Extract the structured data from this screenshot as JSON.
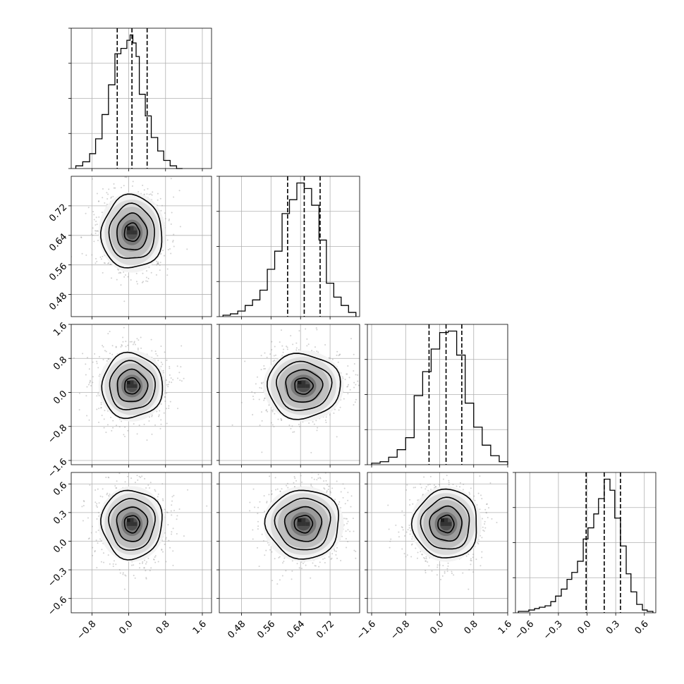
{
  "chart_data": {
    "type": "corner",
    "grid": true,
    "parameters": [
      {
        "range": [
          -1.25,
          1.8
        ],
        "ticks": [
          -0.8,
          0.0,
          0.8,
          1.6
        ],
        "tick_labels": [
          "−0.8",
          "0.0",
          "0.8",
          "1.6"
        ],
        "quantiles": [
          -0.25,
          0.07,
          0.4
        ]
      },
      {
        "range": [
          0.42,
          0.8
        ],
        "ticks": [
          0.48,
          0.56,
          0.64,
          0.72
        ],
        "tick_labels": [
          "0.48",
          "0.56",
          "0.64",
          "0.72"
        ],
        "quantiles": [
          0.605,
          0.65,
          0.693
        ]
      },
      {
        "range": [
          -1.7,
          1.6
        ],
        "ticks": [
          -1.6,
          -0.8,
          0.0,
          0.8,
          1.6
        ],
        "tick_labels": [
          "−1.6",
          "−0.8",
          "0.0",
          "0.8",
          "1.6"
        ],
        "quantiles": [
          -0.25,
          0.15,
          0.52
        ]
      },
      {
        "range": [
          -0.75,
          0.72
        ],
        "ticks": [
          -0.6,
          -0.3,
          0.0,
          0.3,
          0.6
        ],
        "tick_labels": [
          "−0.6",
          "−0.3",
          "0.0",
          "0.3",
          "0.6"
        ],
        "quantiles": [
          -0.01,
          0.18,
          0.35
        ]
      }
    ],
    "histograms": [
      {
        "edges": [
          -1.15,
          -1.0,
          -0.85,
          -0.72,
          -0.58,
          -0.44,
          -0.3,
          -0.17,
          -0.04,
          0.03,
          0.09,
          0.16,
          0.23,
          0.36,
          0.49,
          0.63,
          0.76,
          0.9,
          1.04,
          1.17
        ],
        "counts": [
          2,
          5,
          11,
          22,
          40,
          62,
          85,
          89,
          95,
          99,
          93,
          83,
          55,
          39,
          23,
          13,
          6,
          2,
          0
        ]
      },
      {
        "edges": [
          0.43,
          0.45,
          0.47,
          0.49,
          0.51,
          0.53,
          0.55,
          0.57,
          0.59,
          0.61,
          0.63,
          0.65,
          0.67,
          0.69,
          0.71,
          0.73,
          0.75,
          0.77,
          0.79
        ],
        "counts": [
          1,
          2,
          4,
          8,
          12,
          19,
          34,
          47,
          74,
          84,
          96,
          92,
          80,
          55,
          24,
          14,
          8,
          3
        ]
      },
      {
        "edges": [
          -1.6,
          -1.4,
          -1.2,
          -1.0,
          -0.8,
          -0.6,
          -0.4,
          -0.2,
          0.0,
          0.2,
          0.4,
          0.6,
          0.8,
          1.0,
          1.2,
          1.4,
          1.6
        ],
        "counts": [
          1,
          2,
          5,
          10,
          18,
          46,
          62,
          77,
          88,
          89,
          73,
          41,
          25,
          13,
          6,
          2
        ]
      },
      {
        "edges": [
          -0.72,
          -0.66,
          -0.61,
          -0.55,
          -0.5,
          -0.44,
          -0.38,
          -0.33,
          -0.27,
          -0.21,
          -0.16,
          -0.1,
          -0.04,
          0.01,
          0.07,
          0.12,
          0.18,
          0.24,
          0.29,
          0.35,
          0.41,
          0.46,
          0.52,
          0.58,
          0.63,
          0.69
        ],
        "counts": [
          1,
          1,
          2,
          3,
          4,
          5,
          8,
          12,
          17,
          24,
          29,
          37,
          53,
          61,
          71,
          82,
          96,
          88,
          68,
          48,
          28,
          15,
          6,
          2,
          1
        ]
      }
    ],
    "pairs": [
      {
        "x": 0,
        "y": 1,
        "center": [
          0.07,
          0.648
        ],
        "sigma": [
          0.33,
          0.0495
        ],
        "contour_levels": [
          0.5,
          1.0,
          1.5,
          2.0
        ]
      },
      {
        "x": 0,
        "y": 2,
        "center": [
          0.07,
          0.15
        ],
        "sigma": [
          0.33,
          0.38
        ],
        "contour_levels": [
          0.5,
          1.0,
          1.5,
          2.0
        ]
      },
      {
        "x": 1,
        "y": 2,
        "center": [
          0.648,
          0.15
        ],
        "sigma": [
          0.0495,
          0.38
        ],
        "contour_levels": [
          0.5,
          1.0,
          1.5,
          2.0
        ]
      },
      {
        "x": 0,
        "y": 3,
        "center": [
          0.07,
          0.18
        ],
        "sigma": [
          0.33,
          0.18
        ],
        "contour_levels": [
          0.5,
          1.0,
          1.5,
          2.0
        ]
      },
      {
        "x": 1,
        "y": 3,
        "center": [
          0.648,
          0.18
        ],
        "sigma": [
          0.0495,
          0.18
        ],
        "contour_levels": [
          0.5,
          1.0,
          1.5,
          2.0
        ]
      },
      {
        "x": 2,
        "y": 3,
        "center": [
          0.15,
          0.18
        ],
        "sigma": [
          0.38,
          0.18
        ],
        "contour_levels": [
          0.5,
          1.0,
          1.5,
          2.0
        ]
      }
    ]
  }
}
